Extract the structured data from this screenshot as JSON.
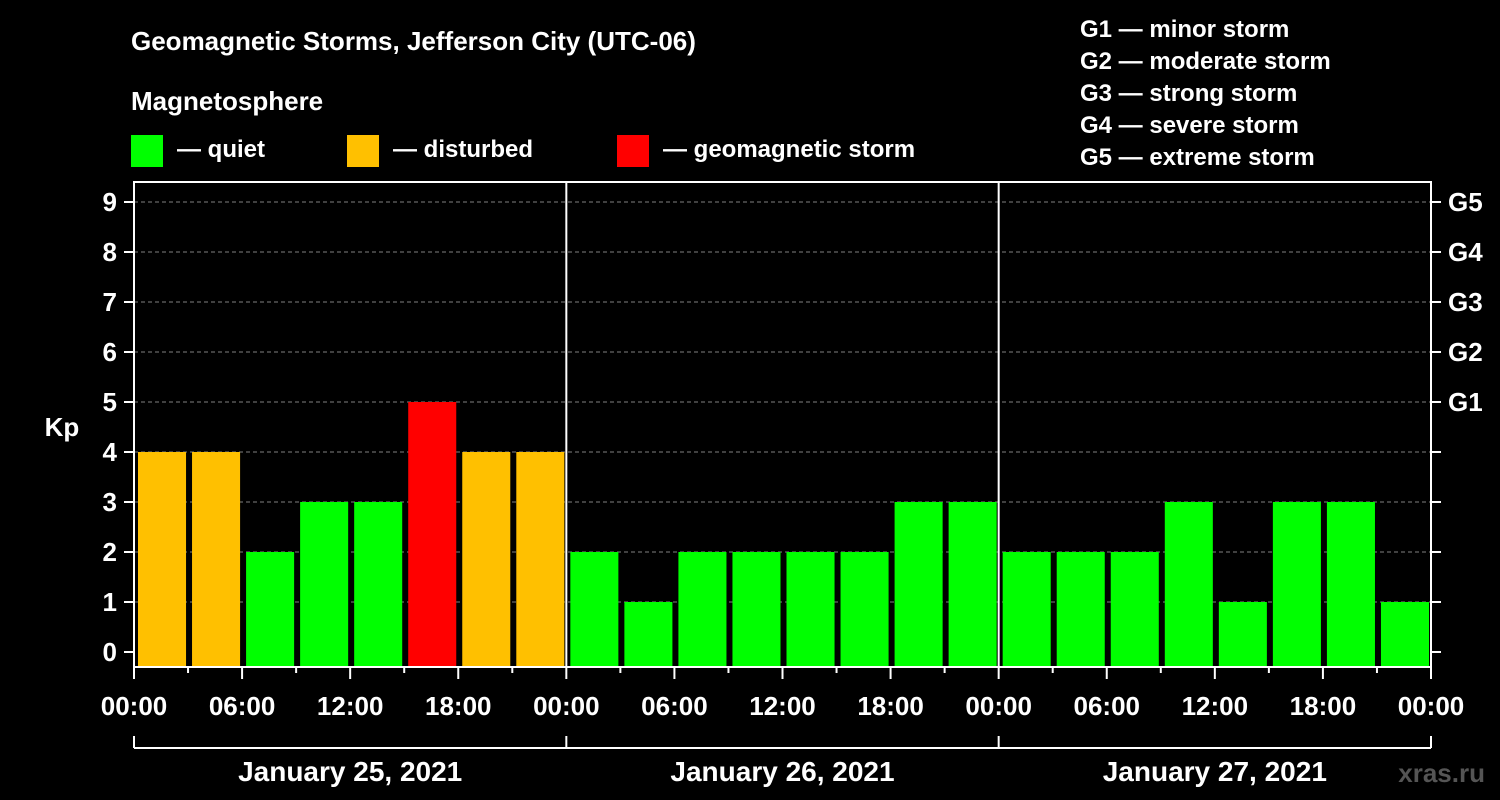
{
  "chart_data": {
    "type": "bar",
    "title": "Geomagnetic Storms, Jefferson City (UTC-06)",
    "subtitle": "Magnetosphere",
    "ylabel": "Kp",
    "ylim": [
      0,
      9
    ],
    "yticks": [
      "0",
      "1",
      "2",
      "3",
      "4",
      "5",
      "6",
      "7",
      "8",
      "9"
    ],
    "right_ticks": [
      {
        "kp": 5,
        "label": "G1"
      },
      {
        "kp": 6,
        "label": "G2"
      },
      {
        "kp": 7,
        "label": "G3"
      },
      {
        "kp": 8,
        "label": "G4"
      },
      {
        "kp": 9,
        "label": "G5"
      }
    ],
    "grid": true,
    "legend": [
      {
        "label": "— quiet",
        "color": "#00ff00"
      },
      {
        "label": "— disturbed",
        "color": "#ffc000"
      },
      {
        "label": "— geomagnetic storm",
        "color": "#ff0000"
      }
    ],
    "storm_scale": [
      "G1 — minor storm",
      "G2 — moderate storm",
      "G3 — strong storm",
      "G4 — severe storm",
      "G5 — extreme storm"
    ],
    "x_tick_labels": [
      "00:00",
      "06:00",
      "12:00",
      "18:00",
      "00:00",
      "06:00",
      "12:00",
      "18:00",
      "00:00",
      "06:00",
      "12:00",
      "18:00",
      "00:00"
    ],
    "days": [
      "January 25, 2021",
      "January 26, 2021",
      "January 27, 2021"
    ],
    "colors": {
      "quiet": "#00ff00",
      "disturbed": "#ffc000",
      "storm": "#ff0000"
    },
    "values": [
      4,
      4,
      2,
      3,
      3,
      5,
      4,
      4,
      2,
      1,
      2,
      2,
      2,
      2,
      3,
      3,
      2,
      2,
      2,
      3,
      1,
      3,
      3,
      1
    ]
  },
  "watermark": "xras.ru"
}
